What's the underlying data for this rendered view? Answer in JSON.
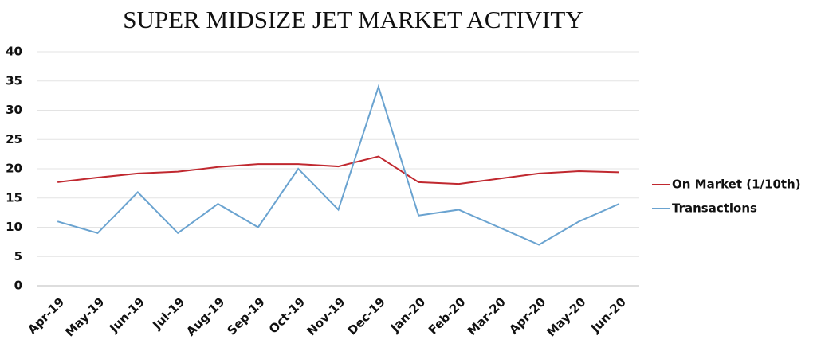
{
  "chart_data": {
    "type": "line",
    "title": "SUPER MIDSIZE JET MARKET ACTIVITY",
    "categories": [
      "Apr-19",
      "May-19",
      "Jun-19",
      "Jul-19",
      "Aug-19",
      "Sep-19",
      "Oct-19",
      "Nov-19",
      "Dec-19",
      "Jan-20",
      "Feb-20",
      "Mar-20",
      "Apr-20",
      "May-20",
      "Jun-20"
    ],
    "series": [
      {
        "name": "On Market (1/10th)",
        "color": "#c0282f",
        "values": [
          17.7,
          18.5,
          19.2,
          19.5,
          20.3,
          20.8,
          20.8,
          20.4,
          22.1,
          17.7,
          17.4,
          18.3,
          19.2,
          19.6,
          19.4
        ]
      },
      {
        "name": "Transactions",
        "color": "#6aa3d0",
        "values": [
          11,
          9,
          16,
          9,
          14,
          10,
          20,
          13,
          34,
          12,
          13,
          10,
          7,
          11,
          14
        ]
      }
    ],
    "ylim": [
      0,
      40
    ],
    "yticks": [
      0,
      5,
      10,
      15,
      20,
      25,
      30,
      35,
      40
    ],
    "grid": true,
    "legend": "right"
  }
}
